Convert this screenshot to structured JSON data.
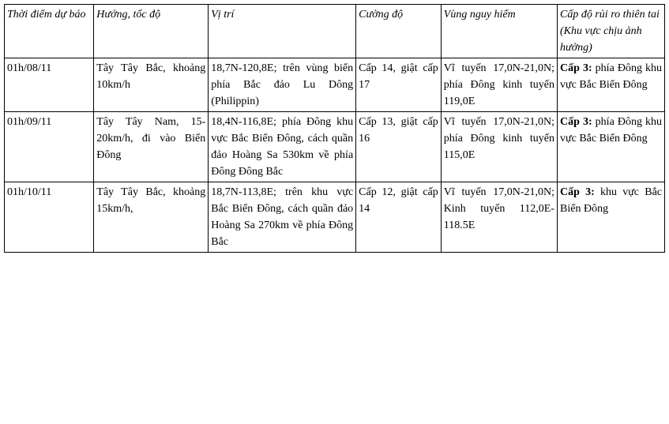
{
  "headers": [
    "Thời điểm dự báo",
    "Hướng, tốc độ",
    "Vị trí",
    "Cường độ",
    "Vùng nguy hiểm",
    "Cấp độ rủi ro thiên tai (Khu vực chịu ảnh hưởng)"
  ],
  "rows": [
    {
      "time": "01h/08/11",
      "direction_speed": "Tây Tây Bắc, khoảng 10km/h",
      "position": "18,7N-120,8E; trên vùng biển phía Bắc đảo Lu Dông (Philippin)",
      "intensity": "Cấp 14, giật cấp 17",
      "danger_zone": "Vĩ tuyến 17,0N-21,0N; phía Đông kinh tuyến 119,0E",
      "risk_bold": "Cấp 3:",
      "risk_text": " phía Đông khu vực Bắc Biển Đông"
    },
    {
      "time": "01h/09/11",
      "direction_speed": "Tây Tây Nam, 15-20km/h, đi vào Biển Đông",
      "position": "18,4N-116,8E; phía Đông khu vực Bắc Biển Đông, cách quần đảo Hoàng Sa 530km về phía Đông Đông Bắc",
      "intensity": "Cấp 13, giật cấp 16",
      "danger_zone": "Vĩ tuyến 17,0N-21,0N; phía Đông kinh tuyến 115,0E",
      "risk_bold": "Cấp 3:",
      "risk_text": " phía Đông khu vực Bắc Biển Đông"
    },
    {
      "time": "01h/10/11",
      "direction_speed": "Tây Tây Bắc, khoảng 15km/h,",
      "position": "18,7N-113,8E; trên khu vực Bắc Biển Đông, cách quần đảo Hoàng Sa 270km về phía Đông Bắc",
      "intensity": "Cấp 12, giật cấp 14",
      "danger_zone": "Vĩ tuyến 17,0N-21,0N; Kinh tuyến 112,0E-118.5E",
      "risk_bold": "Cấp 3:",
      "risk_text": " khu vực Bắc Biển Đông"
    }
  ]
}
